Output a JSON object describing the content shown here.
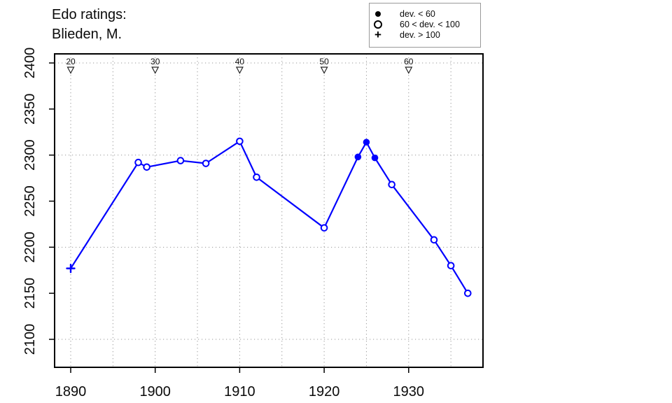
{
  "title": {
    "line1": "Edo ratings:",
    "line2": "Blieden, M."
  },
  "legend": {
    "items": [
      {
        "symbol": "filled-circle",
        "label": "dev. < 60"
      },
      {
        "symbol": "open-circle",
        "label": "60 < dev. < 100"
      },
      {
        "symbol": "plus",
        "label": "dev. > 100"
      }
    ]
  },
  "colors": {
    "series": "#0000FF",
    "grid": "#999999",
    "axis": "#000000"
  },
  "chart_data": {
    "type": "line",
    "title": "Edo ratings: Blieden, M.",
    "xlabel": "",
    "ylabel": "",
    "xlim": [
      1888,
      1939
    ],
    "ylim": [
      2070,
      2410
    ],
    "grid": true,
    "legend_position": "top-right-outside",
    "x": [
      1890,
      1898,
      1899,
      1903,
      1906,
      1910,
      1912,
      1920,
      1924,
      1925,
      1926,
      1928,
      1933,
      1935,
      1937
    ],
    "y": [
      2177,
      2292,
      2287,
      2294,
      2291,
      2315,
      2276,
      2221,
      2298,
      2314,
      2297,
      2268,
      2208,
      2180,
      2150
    ],
    "point_style": [
      "plus",
      "open",
      "open",
      "open",
      "open",
      "open",
      "open",
      "open",
      "filled",
      "filled",
      "filled",
      "open",
      "open",
      "open",
      "open"
    ],
    "series": [
      {
        "name": "Edo rating",
        "color": "#0000FF"
      }
    ],
    "x_ticks": [
      1890,
      1900,
      1910,
      1920,
      1930
    ],
    "y_ticks": [
      2100,
      2150,
      2200,
      2250,
      2300,
      2350,
      2400
    ],
    "x_gridlines": [
      1890,
      1895,
      1900,
      1905,
      1910,
      1915,
      1920,
      1925,
      1930,
      1935
    ],
    "y_gridlines": [
      2100,
      2200,
      2300,
      2400
    ],
    "age_markers": {
      "ages": [
        "20",
        "30",
        "40",
        "50",
        "60"
      ],
      "years": [
        1890,
        1900,
        1910,
        1920,
        1930
      ]
    }
  }
}
